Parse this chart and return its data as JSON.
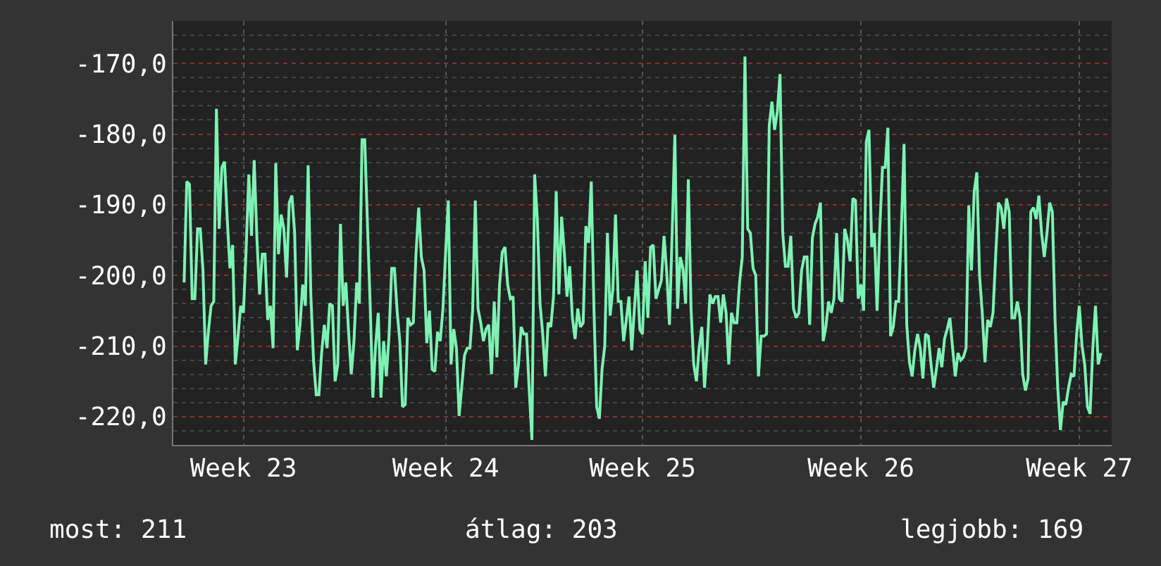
{
  "chart_data": {
    "type": "line",
    "annotations": [
      "most: 211",
      "átlag: 203",
      "legjobb: 169"
    ],
    "categories": [
      null,
      null,
      null,
      null,
      null,
      null,
      null,
      null,
      null,
      null,
      null,
      null,
      null,
      null,
      null,
      null,
      null,
      null,
      null,
      null,
      null,
      null,
      "Week 23",
      null,
      null,
      null,
      null,
      null,
      null,
      null,
      null,
      null,
      null,
      null,
      null,
      null,
      null,
      null,
      null,
      null,
      null,
      null,
      null,
      null,
      null,
      null,
      null,
      null,
      null,
      null,
      null,
      null,
      null,
      null,
      null,
      null,
      null,
      null,
      null,
      null,
      null,
      null,
      null,
      null,
      null,
      null,
      null,
      null,
      null,
      null,
      null,
      null,
      null,
      null,
      null,
      null,
      null,
      null,
      null,
      null,
      null,
      null,
      null,
      null,
      null,
      null,
      null,
      null,
      null,
      null,
      null,
      null,
      null,
      null,
      null,
      null,
      null,
      "Week 24",
      null,
      null,
      null,
      null,
      null,
      null,
      null,
      null,
      null,
      null,
      null,
      null,
      null,
      null,
      null,
      null,
      null,
      null,
      null,
      null,
      null,
      null,
      null,
      null,
      null,
      null,
      null,
      null,
      null,
      null,
      null,
      null,
      null,
      null,
      null,
      null,
      null,
      null,
      null,
      null,
      null,
      null,
      null,
      null,
      null,
      null,
      null,
      null,
      null,
      null,
      null,
      null,
      null,
      null,
      null,
      null,
      null,
      null,
      null,
      null,
      null,
      null,
      null,
      null,
      null,
      null,
      null,
      null,
      null,
      null,
      null,
      null,
      "Week 25",
      null,
      null,
      null,
      null,
      null,
      null,
      null,
      null,
      null,
      null,
      null,
      null,
      null,
      null,
      null,
      null,
      null,
      null,
      null,
      null,
      null,
      null,
      null,
      null,
      null,
      null,
      null,
      null,
      null,
      null,
      null,
      null,
      null,
      null,
      null,
      null,
      null,
      null,
      null,
      null,
      null,
      null,
      null,
      null,
      null,
      null,
      null,
      null,
      null,
      null,
      null,
      null,
      null,
      null,
      null,
      null,
      null,
      null,
      null,
      null,
      null,
      null,
      null,
      null,
      null,
      null,
      null,
      null,
      null,
      null,
      null,
      null,
      null,
      null,
      null,
      null,
      null,
      null,
      null,
      null,
      "Week 26",
      null,
      null,
      null,
      null,
      null,
      null,
      null,
      null,
      null,
      null,
      null,
      null,
      null,
      null,
      null,
      null,
      null,
      null,
      null,
      null,
      null,
      null,
      null,
      null,
      null,
      null,
      null,
      null,
      null,
      null,
      null,
      null,
      null,
      null,
      null,
      null,
      null,
      null,
      null,
      null,
      null,
      null,
      null,
      null,
      null,
      null,
      null,
      null,
      null,
      null,
      null,
      null,
      null,
      null,
      null,
      null,
      null,
      null,
      null,
      null,
      null,
      null,
      null,
      null,
      null,
      null,
      null,
      null,
      null,
      null,
      null,
      null,
      null,
      null,
      null,
      null,
      null,
      null,
      null,
      null,
      "Week 27",
      null,
      null,
      null,
      null,
      null,
      null,
      null,
      null
    ],
    "ylim": [
      -224,
      -164
    ],
    "yticks": [
      {
        "value": -220,
        "label": "-220,0"
      },
      {
        "value": -210,
        "label": "-210,0"
      },
      {
        "value": -200,
        "label": "-200,0"
      },
      {
        "value": -190,
        "label": "-190,0"
      },
      {
        "value": -180,
        "label": "-180,0"
      },
      {
        "value": -170,
        "label": "-170,0"
      }
    ],
    "grid": true,
    "marker": "none",
    "line_style": "solid",
    "series": [
      {
        "color": "#7df2b4",
        "values": [
          -201.0,
          -186.7,
          -187.1,
          -203.3,
          -203.3,
          -193.4,
          -193.4,
          -199.3,
          -212.6,
          -208.0,
          -204.3,
          -203.7,
          -176.4,
          -193.4,
          -184.7,
          -183.9,
          -192.0,
          -199.0,
          -195.7,
          -212.6,
          -208.6,
          -204.3,
          -205.3,
          -196.4,
          -185.7,
          -194.4,
          -183.7,
          -194.7,
          -202.7,
          -197.0,
          -197.0,
          -206.3,
          -204.3,
          -210.3,
          -184.1,
          -197.0,
          -191.4,
          -193.4,
          -200.3,
          -189.7,
          -188.7,
          -194.0,
          -210.6,
          -207.0,
          -201.3,
          -204.3,
          -184.4,
          -202.7,
          -212.0,
          -216.9,
          -216.9,
          -211.0,
          -207.0,
          -210.3,
          -204.0,
          -204.3,
          -215.0,
          -212.6,
          -192.7,
          -204.3,
          -201.0,
          -208.0,
          -214.0,
          -209.3,
          -201.0,
          -204.0,
          -180.8,
          -180.8,
          -192.7,
          -204.0,
          -217.3,
          -210.0,
          -205.3,
          -217.3,
          -209.3,
          -214.3,
          -208.6,
          -199.0,
          -199.0,
          -205.0,
          -209.3,
          -218.6,
          -218.3,
          -206.0,
          -207.0,
          -206.7,
          -197.0,
          -190.4,
          -197.4,
          -199.3,
          -209.6,
          -205.0,
          -213.3,
          -213.6,
          -208.0,
          -209.3,
          -204.7,
          -196.7,
          -189.4,
          -212.6,
          -207.6,
          -210.3,
          -219.9,
          -215.6,
          -211.3,
          -210.3,
          -210.3,
          -205.0,
          -189.4,
          -204.7,
          -206.7,
          -209.3,
          -207.6,
          -207.0,
          -214.0,
          -203.7,
          -211.6,
          -201.3,
          -196.7,
          -196.0,
          -201.3,
          -203.3,
          -203.0,
          -215.9,
          -212.6,
          -207.3,
          -208.3,
          -208.3,
          -216.3,
          -223.3,
          -185.7,
          -192.0,
          -204.0,
          -208.3,
          -214.3,
          -206.7,
          -207.3,
          -203.0,
          -188.1,
          -202.7,
          -191.7,
          -196.7,
          -203.0,
          -198.7,
          -206.0,
          -209.0,
          -204.7,
          -207.3,
          -206.7,
          -193.0,
          -195.4,
          -186.7,
          -204.7,
          -218.6,
          -220.3,
          -213.3,
          -210.0,
          -194.0,
          -205.7,
          -202.0,
          -191.4,
          -203.7,
          -203.7,
          -209.3,
          -206.3,
          -203.0,
          -210.6,
          -204.7,
          -199.3,
          -207.6,
          -208.3,
          -198.0,
          -206.0,
          -196.0,
          -195.7,
          -203.3,
          -202.0,
          -200.7,
          -194.4,
          -199.7,
          -207.0,
          -194.0,
          -180.1,
          -204.7,
          -197.4,
          -199.0,
          -204.0,
          -186.4,
          -204.7,
          -212.6,
          -215.0,
          -210.3,
          -207.3,
          -215.9,
          -210.3,
          -202.7,
          -204.0,
          -203.0,
          -203.0,
          -206.7,
          -202.7,
          -205.3,
          -212.6,
          -205.3,
          -206.7,
          -206.7,
          -201.0,
          -197.4,
          -169.0,
          -193.4,
          -194.0,
          -199.0,
          -200.0,
          -214.3,
          -208.6,
          -208.6,
          -208.3,
          -178.8,
          -175.4,
          -179.4,
          -176.8,
          -171.5,
          -194.0,
          -198.7,
          -198.7,
          -194.4,
          -204.7,
          -206.0,
          -205.3,
          -199.3,
          -197.4,
          -197.4,
          -207.0,
          -194.7,
          -192.7,
          -191.7,
          -189.7,
          -209.3,
          -207.3,
          -203.7,
          -205.3,
          -203.3,
          -194.0,
          -203.3,
          -203.7,
          -193.4,
          -195.0,
          -198.0,
          -189.1,
          -189.4,
          -203.3,
          -201.3,
          -205.0,
          -181.1,
          -179.4,
          -196.0,
          -194.0,
          -205.0,
          -193.4,
          -184.7,
          -184.7,
          -179.1,
          -208.6,
          -207.3,
          -203.7,
          -203.7,
          -193.4,
          -181.4,
          -207.0,
          -212.3,
          -214.3,
          -210.6,
          -208.3,
          -210.3,
          -214.6,
          -208.3,
          -208.6,
          -212.6,
          -215.9,
          -213.3,
          -210.3,
          -213.0,
          -209.0,
          -207.6,
          -206.0,
          -210.3,
          -214.3,
          -211.0,
          -212.0,
          -211.6,
          -210.3,
          -190.1,
          -199.3,
          -188.1,
          -185.4,
          -200.0,
          -205.3,
          -212.3,
          -206.3,
          -207.3,
          -205.3,
          -197.0,
          -189.7,
          -190.4,
          -193.4,
          -189.1,
          -191.0,
          -206.0,
          -206.0,
          -203.7,
          -206.0,
          -214.0,
          -216.3,
          -214.6,
          -191.0,
          -190.4,
          -192.0,
          -188.7,
          -194.0,
          -197.4,
          -194.0,
          -189.7,
          -191.0,
          -206.3,
          -215.9,
          -221.9,
          -217.9,
          -218.3,
          -215.9,
          -214.0,
          -214.3,
          -208.3,
          -204.3,
          -210.0,
          -212.6,
          -218.6,
          -219.6,
          -210.3,
          -204.3,
          -212.6,
          -211.0
        ]
      }
    ]
  }
}
